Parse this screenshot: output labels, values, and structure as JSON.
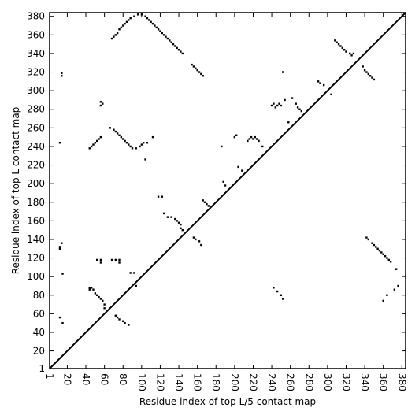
{
  "chart_data": {
    "type": "scatter",
    "xlabel": "Residue index of top L/5 contact map",
    "ylabel": "Residue index of top L contact map",
    "xlim": [
      1,
      384
    ],
    "ylim": [
      1,
      384
    ],
    "x_ticks": [
      1,
      20,
      40,
      60,
      80,
      100,
      120,
      140,
      160,
      180,
      200,
      220,
      240,
      260,
      280,
      300,
      320,
      340,
      360,
      380
    ],
    "y_ticks": [
      1,
      20,
      40,
      60,
      80,
      100,
      120,
      140,
      160,
      180,
      200,
      220,
      240,
      260,
      280,
      300,
      320,
      340,
      360,
      380
    ],
    "grid": false,
    "diagonal_line": true,
    "series": [
      {
        "marker": "square",
        "color": "#000000",
        "points": [
          [
            12,
            130
          ],
          [
            12,
            132
          ],
          [
            14,
            136
          ],
          [
            14,
            316
          ],
          [
            14,
            319
          ],
          [
            12,
            244
          ],
          [
            12,
            56
          ],
          [
            15,
            50
          ],
          [
            15,
            103
          ],
          [
            44,
            86
          ],
          [
            44,
            88
          ],
          [
            46,
            88
          ],
          [
            48,
            86
          ],
          [
            50,
            82
          ],
          [
            52,
            80
          ],
          [
            54,
            78
          ],
          [
            56,
            76
          ],
          [
            58,
            74
          ],
          [
            60,
            70
          ],
          [
            60,
            66
          ],
          [
            52,
            118
          ],
          [
            56,
            118
          ],
          [
            56,
            115
          ],
          [
            68,
            118
          ],
          [
            72,
            118
          ],
          [
            76,
            118
          ],
          [
            76,
            115
          ],
          [
            44,
            238
          ],
          [
            46,
            240
          ],
          [
            48,
            242
          ],
          [
            50,
            244
          ],
          [
            52,
            246
          ],
          [
            54,
            248
          ],
          [
            56,
            250
          ],
          [
            66,
            260
          ],
          [
            70,
            258
          ],
          [
            72,
            256
          ],
          [
            74,
            254
          ],
          [
            76,
            252
          ],
          [
            78,
            250
          ],
          [
            80,
            248
          ],
          [
            82,
            246
          ],
          [
            84,
            244
          ],
          [
            86,
            242
          ],
          [
            88,
            240
          ],
          [
            90,
            238
          ],
          [
            94,
            238
          ],
          [
            98,
            240
          ],
          [
            100,
            242
          ],
          [
            102,
            244
          ],
          [
            106,
            244
          ],
          [
            112,
            250
          ],
          [
            104,
            226
          ],
          [
            56,
            284
          ],
          [
            58,
            286
          ],
          [
            56,
            288
          ],
          [
            68,
            356
          ],
          [
            70,
            358
          ],
          [
            72,
            360
          ],
          [
            74,
            362
          ],
          [
            76,
            366
          ],
          [
            78,
            368
          ],
          [
            80,
            370
          ],
          [
            82,
            372
          ],
          [
            84,
            374
          ],
          [
            86,
            376
          ],
          [
            88,
            378
          ],
          [
            92,
            380
          ],
          [
            96,
            382
          ],
          [
            100,
            382
          ],
          [
            104,
            380
          ],
          [
            106,
            378
          ],
          [
            108,
            376
          ],
          [
            110,
            374
          ],
          [
            112,
            372
          ],
          [
            114,
            370
          ],
          [
            116,
            368
          ],
          [
            118,
            366
          ],
          [
            120,
            364
          ],
          [
            122,
            362
          ],
          [
            124,
            360
          ],
          [
            126,
            358
          ],
          [
            128,
            356
          ],
          [
            130,
            354
          ],
          [
            132,
            352
          ],
          [
            134,
            350
          ],
          [
            136,
            348
          ],
          [
            138,
            346
          ],
          [
            140,
            344
          ],
          [
            142,
            342
          ],
          [
            144,
            340
          ],
          [
            154,
            328
          ],
          [
            156,
            326
          ],
          [
            158,
            324
          ],
          [
            160,
            322
          ],
          [
            162,
            320
          ],
          [
            164,
            318
          ],
          [
            166,
            316
          ],
          [
            72,
            58
          ],
          [
            74,
            56
          ],
          [
            76,
            54
          ],
          [
            80,
            52
          ],
          [
            82,
            50
          ],
          [
            86,
            48
          ],
          [
            88,
            104
          ],
          [
            92,
            104
          ],
          [
            94,
            90
          ],
          [
            118,
            186
          ],
          [
            122,
            186
          ],
          [
            124,
            168
          ],
          [
            128,
            164
          ],
          [
            132,
            164
          ],
          [
            136,
            162
          ],
          [
            138,
            160
          ],
          [
            140,
            158
          ],
          [
            142,
            156
          ],
          [
            142,
            152
          ],
          [
            144,
            150
          ],
          [
            156,
            142
          ],
          [
            158,
            140
          ],
          [
            162,
            138
          ],
          [
            164,
            134
          ],
          [
            166,
            182
          ],
          [
            168,
            180
          ],
          [
            170,
            178
          ],
          [
            172,
            176
          ],
          [
            186,
            240
          ],
          [
            188,
            202
          ],
          [
            190,
            198
          ],
          [
            200,
            250
          ],
          [
            202,
            252
          ],
          [
            204,
            218
          ],
          [
            208,
            214
          ],
          [
            214,
            246
          ],
          [
            216,
            248
          ],
          [
            218,
            250
          ],
          [
            220,
            248
          ],
          [
            222,
            250
          ],
          [
            224,
            248
          ],
          [
            226,
            246
          ],
          [
            230,
            240
          ],
          [
            240,
            284
          ],
          [
            242,
            286
          ],
          [
            244,
            282
          ],
          [
            246,
            284
          ],
          [
            248,
            286
          ],
          [
            250,
            284
          ],
          [
            252,
            320
          ],
          [
            254,
            290
          ],
          [
            258,
            266
          ],
          [
            262,
            292
          ],
          [
            266,
            286
          ],
          [
            268,
            282
          ],
          [
            270,
            280
          ],
          [
            272,
            278
          ],
          [
            242,
            88
          ],
          [
            246,
            84
          ],
          [
            250,
            80
          ],
          [
            252,
            76
          ],
          [
            290,
            310
          ],
          [
            292,
            308
          ],
          [
            296,
            306
          ],
          [
            304,
            296
          ],
          [
            308,
            354
          ],
          [
            310,
            352
          ],
          [
            312,
            350
          ],
          [
            314,
            348
          ],
          [
            316,
            346
          ],
          [
            318,
            344
          ],
          [
            320,
            342
          ],
          [
            324,
            340
          ],
          [
            326,
            338
          ],
          [
            328,
            340
          ],
          [
            338,
            326
          ],
          [
            340,
            322
          ],
          [
            342,
            320
          ],
          [
            344,
            318
          ],
          [
            346,
            316
          ],
          [
            348,
            314
          ],
          [
            350,
            312
          ],
          [
            342,
            142
          ],
          [
            344,
            140
          ],
          [
            348,
            136
          ],
          [
            350,
            134
          ],
          [
            352,
            132
          ],
          [
            354,
            130
          ],
          [
            356,
            128
          ],
          [
            358,
            126
          ],
          [
            360,
            124
          ],
          [
            362,
            122
          ],
          [
            364,
            120
          ],
          [
            366,
            118
          ],
          [
            368,
            116
          ],
          [
            374,
            108
          ],
          [
            360,
            74
          ],
          [
            364,
            80
          ],
          [
            372,
            86
          ],
          [
            376,
            90
          ]
        ]
      }
    ]
  }
}
